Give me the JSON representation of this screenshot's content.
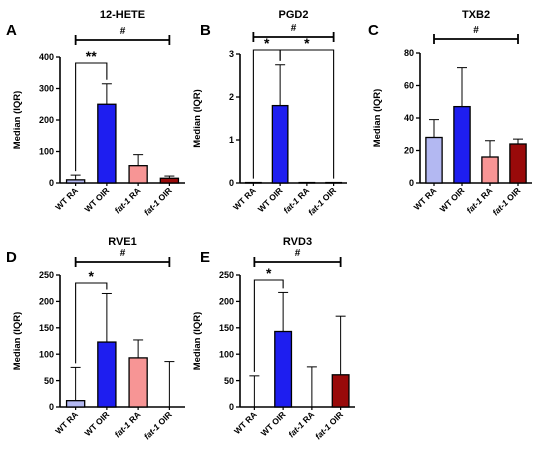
{
  "chart_data": [
    {
      "type": "bar",
      "panel_label": "A",
      "title": "12-HETE",
      "ylabel": "Median (IQR)",
      "ylim": [
        0,
        400
      ],
      "yticks": [
        0,
        100,
        200,
        300,
        400
      ],
      "categories": [
        "WT RA",
        "WT OIR",
        "fat-1 RA",
        "fat-1 OIR"
      ],
      "values": [
        10,
        250,
        55,
        15
      ],
      "errors": [
        25,
        315,
        90,
        22
      ],
      "colors": [
        "#b3b8f2",
        "#1e1ef0",
        "#f79595",
        "#990a0a"
      ],
      "significance": [
        {
          "from": 0,
          "to": 1,
          "label": "**"
        },
        {
          "from": 0,
          "to": 3,
          "label": "#"
        }
      ]
    },
    {
      "type": "bar",
      "panel_label": "B",
      "title": "PGD2",
      "ylabel": "Median (IQR)",
      "ylim": [
        0,
        3
      ],
      "yticks": [
        0,
        1,
        2,
        3
      ],
      "categories": [
        "WT RA",
        "WT OIR",
        "fat-1 RA",
        "fat-1 OIR"
      ],
      "values": [
        0.01,
        1.8,
        0.01,
        0.01
      ],
      "errors": [
        0.01,
        2.75,
        0.01,
        0.01
      ],
      "colors": [
        "#b3b8f2",
        "#1e1ef0",
        "#f79595",
        "#990a0a"
      ],
      "significance": [
        {
          "from": 0,
          "to": 1,
          "label": "*"
        },
        {
          "from": 1,
          "to": 3,
          "label": "*"
        },
        {
          "from": 0,
          "to": 3,
          "label": "#"
        }
      ]
    },
    {
      "type": "bar",
      "panel_label": "C",
      "title": "TXB2",
      "ylabel": "Median (IQR)",
      "ylim": [
        0,
        80
      ],
      "yticks": [
        0,
        20,
        40,
        60,
        80
      ],
      "categories": [
        "WT RA",
        "WT OIR",
        "fat-1 RA",
        "fat-1 OIR"
      ],
      "values": [
        28,
        47,
        16,
        24
      ],
      "errors": [
        39,
        71,
        26,
        27
      ],
      "colors": [
        "#b3b8f2",
        "#1e1ef0",
        "#f79595",
        "#990a0a"
      ],
      "significance": [
        {
          "from": 0,
          "to": 3,
          "label": "#"
        }
      ]
    },
    {
      "type": "bar",
      "panel_label": "D",
      "title": "RVE1",
      "ylabel": "Median (IQR)",
      "ylim": [
        0,
        250
      ],
      "yticks": [
        0,
        50,
        100,
        150,
        200,
        250
      ],
      "categories": [
        "WT RA",
        "WT OIR",
        "fat-1 RA",
        "fat-1 OIR"
      ],
      "values": [
        12,
        123,
        93,
        0
      ],
      "errors": [
        75,
        215,
        127,
        86
      ],
      "colors": [
        "#b3b8f2",
        "#1e1ef0",
        "#f79595",
        "#990a0a"
      ],
      "significance": [
        {
          "from": 0,
          "to": 1,
          "label": "*"
        },
        {
          "from": 0,
          "to": 3,
          "label": "#"
        }
      ]
    },
    {
      "type": "bar",
      "panel_label": "E",
      "title": "RVD3",
      "ylabel": "Median (IQR)",
      "ylim": [
        0,
        250
      ],
      "yticks": [
        0,
        50,
        100,
        150,
        200,
        250
      ],
      "categories": [
        "WT RA",
        "WT OIR",
        "fat-1 RA",
        "fat-1 OIR"
      ],
      "values": [
        0,
        143,
        0,
        61
      ],
      "errors": [
        59,
        217,
        76,
        172
      ],
      "colors": [
        "#b3b8f2",
        "#1e1ef0",
        "#f79595",
        "#990a0a"
      ],
      "significance": [
        {
          "from": 0,
          "to": 1,
          "label": "*"
        },
        {
          "from": 0,
          "to": 3,
          "label": "#"
        }
      ]
    }
  ]
}
